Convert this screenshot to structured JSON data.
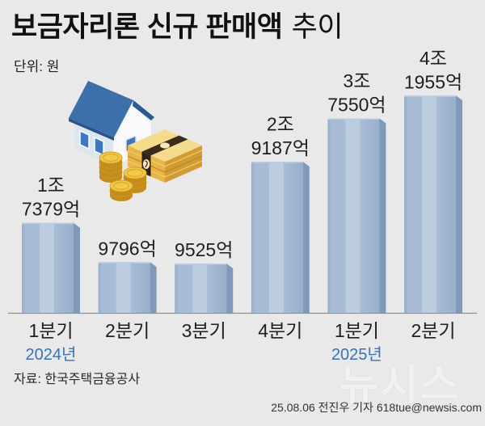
{
  "chart_data": {
    "type": "bar",
    "title": "보금자리론 신규 판매액",
    "title_suffix": "추이",
    "unit": "단위: 원",
    "categories": [
      "1분기",
      "2분기",
      "3분기",
      "4분기",
      "1분기",
      "2분기"
    ],
    "year_labels": [
      {
        "index": 0,
        "label": "2024년"
      },
      {
        "index": 4,
        "label": "2025년"
      }
    ],
    "values": [
      1737900000000,
      979600000000,
      952500000000,
      2918700000000,
      3755000000000,
      4195500000000
    ],
    "data_labels": [
      [
        "1조",
        "7379억"
      ],
      [
        "9796억"
      ],
      [
        "9525억"
      ],
      [
        "2조",
        "9187억"
      ],
      [
        "3조",
        "7550억"
      ],
      [
        "4조",
        "1955억"
      ]
    ],
    "ylim": [
      0,
      4200000000000
    ],
    "grid": false,
    "source": "자료: 한국주택금융공사",
    "colors": {
      "background": "#e9e9ea",
      "bar": "#a8bdd5",
      "bar_highlight": "#bccde0",
      "bar_dark": "#97afca",
      "bar_side": "#7f99b8",
      "baseline": "#8f8f8f",
      "text": "#1f1f1f",
      "year_label": "#3a72b5"
    }
  },
  "icons": {
    "illustration": "house-coins-banknotes-icon"
  },
  "watermark": "뉴시스",
  "footer": {
    "credit": "25.08.06 전진우 기자 618tue@newsis.com"
  }
}
